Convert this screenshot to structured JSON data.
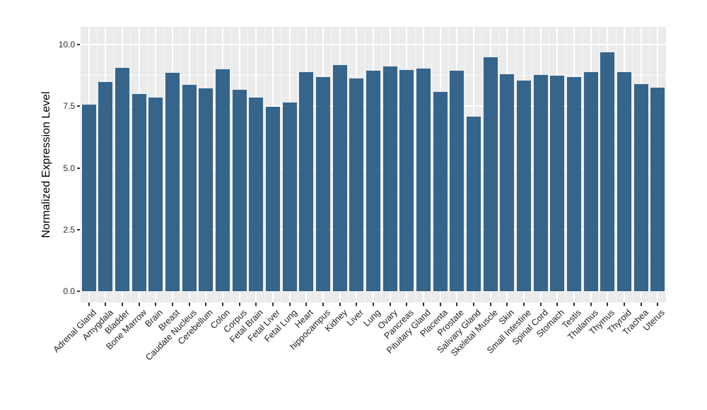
{
  "chart_data": {
    "type": "bar",
    "title": "",
    "xlabel": "",
    "ylabel": "Normalized Expression Level",
    "ylim": [
      0,
      10
    ],
    "grid": true,
    "legend": "none",
    "ytick_labels": [
      "0.0",
      "2.5",
      "5.0",
      "7.5",
      "10.0"
    ],
    "yticks": [
      0,
      2.5,
      5,
      7.5,
      10
    ],
    "yticks_minor": [
      1.25,
      3.75,
      6.25,
      8.75
    ],
    "categories": [
      "Adrenal Gland",
      "Amygdala",
      "Bladder",
      "Bone Marrow",
      "Brain",
      "Breast",
      "Caudate Nucleus",
      "Cerebellum",
      "Colon",
      "Corpus",
      "Fetal Brain",
      "Fetal Liver",
      "Fetal Lung",
      "Heart",
      "hippocampus",
      "Kidney",
      "Liver",
      "Lung",
      "Ovary",
      "Pancreas",
      "Pituitary Gland",
      "Placenta",
      "Prostate",
      "Salivary Gland",
      "Skeletal Muscle",
      "Skin",
      "Small Intestine",
      "Spinal Cord",
      "Stomach",
      "Testis",
      "Thalamus",
      "Thymus",
      "Thyroid",
      "Trachea",
      "Uterus"
    ],
    "values": [
      7.56,
      8.5,
      9.07,
      7.99,
      7.86,
      8.87,
      8.36,
      8.22,
      9.0,
      8.17,
      7.85,
      7.48,
      7.65,
      8.89,
      8.69,
      9.17,
      8.62,
      8.96,
      9.13,
      8.99,
      9.03,
      8.1,
      8.94,
      7.08,
      9.49,
      8.81,
      8.56,
      8.78,
      8.76,
      8.7,
      8.9,
      9.68,
      8.88,
      8.41,
      8.25
    ],
    "colors": {
      "bar": "#36658C",
      "panel_background": "#EBEBEB",
      "gridline": "#FFFFFF",
      "figure_background": "#FFFFFF",
      "tick_mark": "#333333",
      "tick_text": "#2B2B2B",
      "axis_title_text": "#000000"
    }
  }
}
